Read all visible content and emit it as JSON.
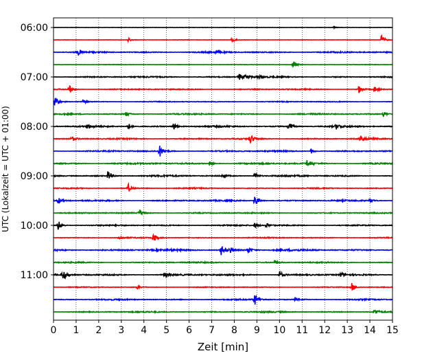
{
  "chart_data": {
    "type": "line",
    "title": "",
    "xlabel": "Zeit  [min]",
    "ylabel": "UTC (Lokalzeit = UTC + 01:00)",
    "xlim": [
      0,
      15
    ],
    "x_ticks": [
      0,
      1,
      2,
      3,
      4,
      5,
      6,
      7,
      8,
      9,
      10,
      11,
      12,
      13,
      14,
      15
    ],
    "x_tick_labels": [
      "0",
      "1",
      "2",
      "3",
      "4",
      "5",
      "6",
      "7",
      "8",
      "9",
      "10",
      "11",
      "12",
      "13",
      "14",
      "15"
    ],
    "y_ticks": [
      "06:00",
      "07:00",
      "08:00",
      "09:00",
      "10:00",
      "11:00"
    ],
    "grid": {
      "x": "dotted",
      "y": "none"
    },
    "colors": [
      "#000000",
      "#ff0000",
      "#0000ff",
      "#008000"
    ],
    "series": [
      {
        "start": "06:00",
        "color": "#000000",
        "noise": 0.2,
        "events": [
          {
            "x": 12.4,
            "amp": 1.0
          }
        ]
      },
      {
        "start": "06:15",
        "color": "#ff0000",
        "noise": 0.25,
        "events": [
          {
            "x": 3.3,
            "amp": 3
          },
          {
            "x": 7.9,
            "amp": 5
          },
          {
            "x": 14.5,
            "amp": 8
          }
        ]
      },
      {
        "start": "06:30",
        "color": "#0000ff",
        "noise": 1.0,
        "events": [
          {
            "x": 1.1,
            "amp": 4
          },
          {
            "x": 7.2,
            "amp": 2
          }
        ]
      },
      {
        "start": "06:45",
        "color": "#008000",
        "noise": 0.3,
        "events": [
          {
            "x": 10.6,
            "amp": 6
          }
        ]
      },
      {
        "start": "07:00",
        "color": "#000000",
        "noise": 0.9,
        "events": [
          {
            "x": 8.2,
            "amp": 6
          },
          {
            "x": 8.5,
            "amp": 5
          },
          {
            "x": 9.0,
            "amp": 4
          }
        ]
      },
      {
        "start": "07:15",
        "color": "#ff0000",
        "noise": 0.8,
        "events": [
          {
            "x": 0.7,
            "amp": 6
          },
          {
            "x": 13.5,
            "amp": 6
          },
          {
            "x": 14.2,
            "amp": 4
          }
        ]
      },
      {
        "start": "07:30",
        "color": "#0000ff",
        "noise": 0.6,
        "events": [
          {
            "x": 0.05,
            "amp": 10
          },
          {
            "x": 1.3,
            "amp": 3
          }
        ]
      },
      {
        "start": "07:45",
        "color": "#008000",
        "noise": 0.9,
        "events": [
          {
            "x": 3.2,
            "amp": 3
          },
          {
            "x": 14.6,
            "amp": 4
          }
        ]
      },
      {
        "start": "08:00",
        "color": "#000000",
        "noise": 1.1,
        "events": [
          {
            "x": 1.5,
            "amp": 3
          },
          {
            "x": 3.3,
            "amp": 5
          },
          {
            "x": 5.3,
            "amp": 6
          },
          {
            "x": 10.4,
            "amp": 8
          },
          {
            "x": 12.5,
            "amp": 4
          }
        ]
      },
      {
        "start": "08:15",
        "color": "#ff0000",
        "noise": 0.9,
        "events": [
          {
            "x": 0.8,
            "amp": 4
          },
          {
            "x": 8.7,
            "amp": 7
          },
          {
            "x": 13.6,
            "amp": 6
          }
        ]
      },
      {
        "start": "08:30",
        "color": "#0000ff",
        "noise": 1.0,
        "events": [
          {
            "x": 4.7,
            "amp": 8
          },
          {
            "x": 11.4,
            "amp": 4
          }
        ]
      },
      {
        "start": "08:45",
        "color": "#008000",
        "noise": 1.1,
        "events": [
          {
            "x": 11.2,
            "amp": 6
          },
          {
            "x": 6.9,
            "amp": 3
          }
        ]
      },
      {
        "start": "09:00",
        "color": "#000000",
        "noise": 1.1,
        "events": [
          {
            "x": 2.4,
            "amp": 8
          },
          {
            "x": 7.5,
            "amp": 3
          },
          {
            "x": 8.9,
            "amp": 5
          }
        ]
      },
      {
        "start": "09:15",
        "color": "#ff0000",
        "noise": 0.8,
        "events": [
          {
            "x": 3.3,
            "amp": 7
          }
        ]
      },
      {
        "start": "09:30",
        "color": "#0000ff",
        "noise": 1.0,
        "events": [
          {
            "x": 0.2,
            "amp": 5
          },
          {
            "x": 8.9,
            "amp": 10
          },
          {
            "x": 14.0,
            "amp": 3
          }
        ]
      },
      {
        "start": "09:45",
        "color": "#008000",
        "noise": 0.8,
        "events": [
          {
            "x": 3.8,
            "amp": 5
          }
        ]
      },
      {
        "start": "10:00",
        "color": "#000000",
        "noise": 0.9,
        "events": [
          {
            "x": 0.2,
            "amp": 8
          },
          {
            "x": 8.9,
            "amp": 4
          },
          {
            "x": 9.4,
            "amp": 4
          }
        ]
      },
      {
        "start": "10:15",
        "color": "#ff0000",
        "noise": 0.7,
        "events": [
          {
            "x": 2.9,
            "amp": 3
          },
          {
            "x": 4.4,
            "amp": 8
          }
        ]
      },
      {
        "start": "10:30",
        "color": "#0000ff",
        "noise": 1.3,
        "events": [
          {
            "x": 7.4,
            "amp": 8
          },
          {
            "x": 7.8,
            "amp": 5
          },
          {
            "x": 8.6,
            "amp": 5
          }
        ]
      },
      {
        "start": "10:45",
        "color": "#008000",
        "noise": 0.9,
        "events": [
          {
            "x": 9.8,
            "amp": 3
          }
        ]
      },
      {
        "start": "11:00",
        "color": "#000000",
        "noise": 1.1,
        "events": [
          {
            "x": 0.4,
            "amp": 9
          },
          {
            "x": 4.9,
            "amp": 4
          },
          {
            "x": 10.0,
            "amp": 6
          },
          {
            "x": 12.7,
            "amp": 4
          }
        ]
      },
      {
        "start": "11:15",
        "color": "#ff0000",
        "noise": 0.6,
        "events": [
          {
            "x": 3.7,
            "amp": 3
          },
          {
            "x": 13.2,
            "amp": 6
          }
        ]
      },
      {
        "start": "11:30",
        "color": "#0000ff",
        "noise": 0.9,
        "events": [
          {
            "x": 8.9,
            "amp": 8
          },
          {
            "x": 10.7,
            "amp": 3
          }
        ]
      },
      {
        "start": "11:45",
        "color": "#008000",
        "noise": 0.9,
        "events": [
          {
            "x": 14.2,
            "amp": 5
          }
        ]
      }
    ]
  }
}
